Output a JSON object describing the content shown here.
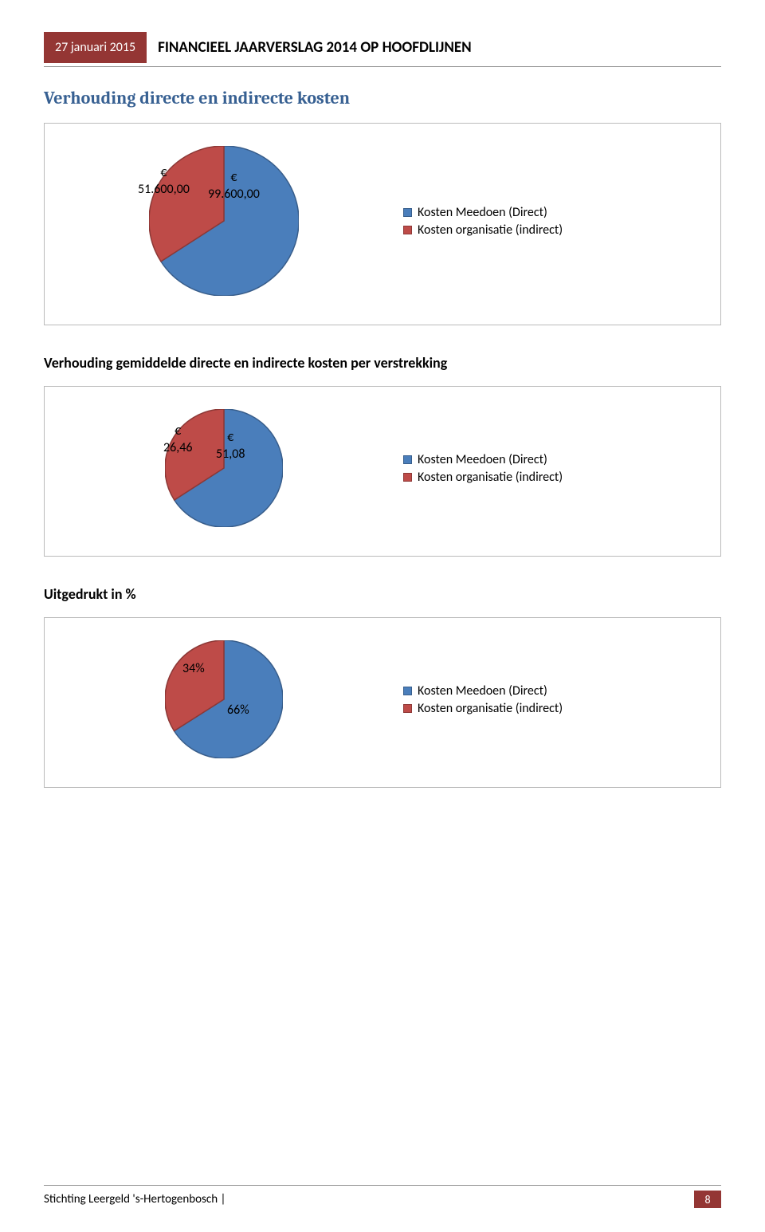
{
  "header": {
    "date": "27 januari 2015",
    "title": "FINANCIEEL JAARVERSLAG 2014 OP HOOFDLIJNEN"
  },
  "section_title": "Verhouding directe en indirecte kosten",
  "legend": {
    "direct": "Kosten Meedoen (Direct)",
    "indirect": "Kosten organisatie (indirect)"
  },
  "colors": {
    "direct": "#4a7ebb",
    "indirect": "#be4b48",
    "direct_stroke": "#385d8a",
    "indirect_stroke": "#8c3836",
    "header_bg": "#943634"
  },
  "chart1": {
    "type": "pie",
    "direct": {
      "value": 99600,
      "label_line1": "€",
      "label_line2": "99.600,00",
      "fraction": 0.659
    },
    "indirect": {
      "value": 51600,
      "label_line1": "€",
      "label_line2": "51.600,00",
      "fraction": 0.341
    },
    "diameter": 188
  },
  "subheading2": "Verhouding gemiddelde directe en indirecte kosten per verstrekking",
  "chart2": {
    "type": "pie",
    "direct": {
      "value": 51.08,
      "label_line1": "€",
      "label_line2": "51,08",
      "fraction": 0.659
    },
    "indirect": {
      "value": 26.46,
      "label_line1": "€",
      "label_line2": "26,46",
      "fraction": 0.341
    },
    "diameter": 148
  },
  "subheading3": "Uitgedrukt in %",
  "chart3": {
    "type": "pie",
    "direct": {
      "label": "66%",
      "fraction": 0.66
    },
    "indirect": {
      "label": "34%",
      "fraction": 0.34
    },
    "diameter": 148
  },
  "footer": {
    "org": "Stichting Leergeld 's-Hertogenbosch |",
    "page": "8"
  }
}
